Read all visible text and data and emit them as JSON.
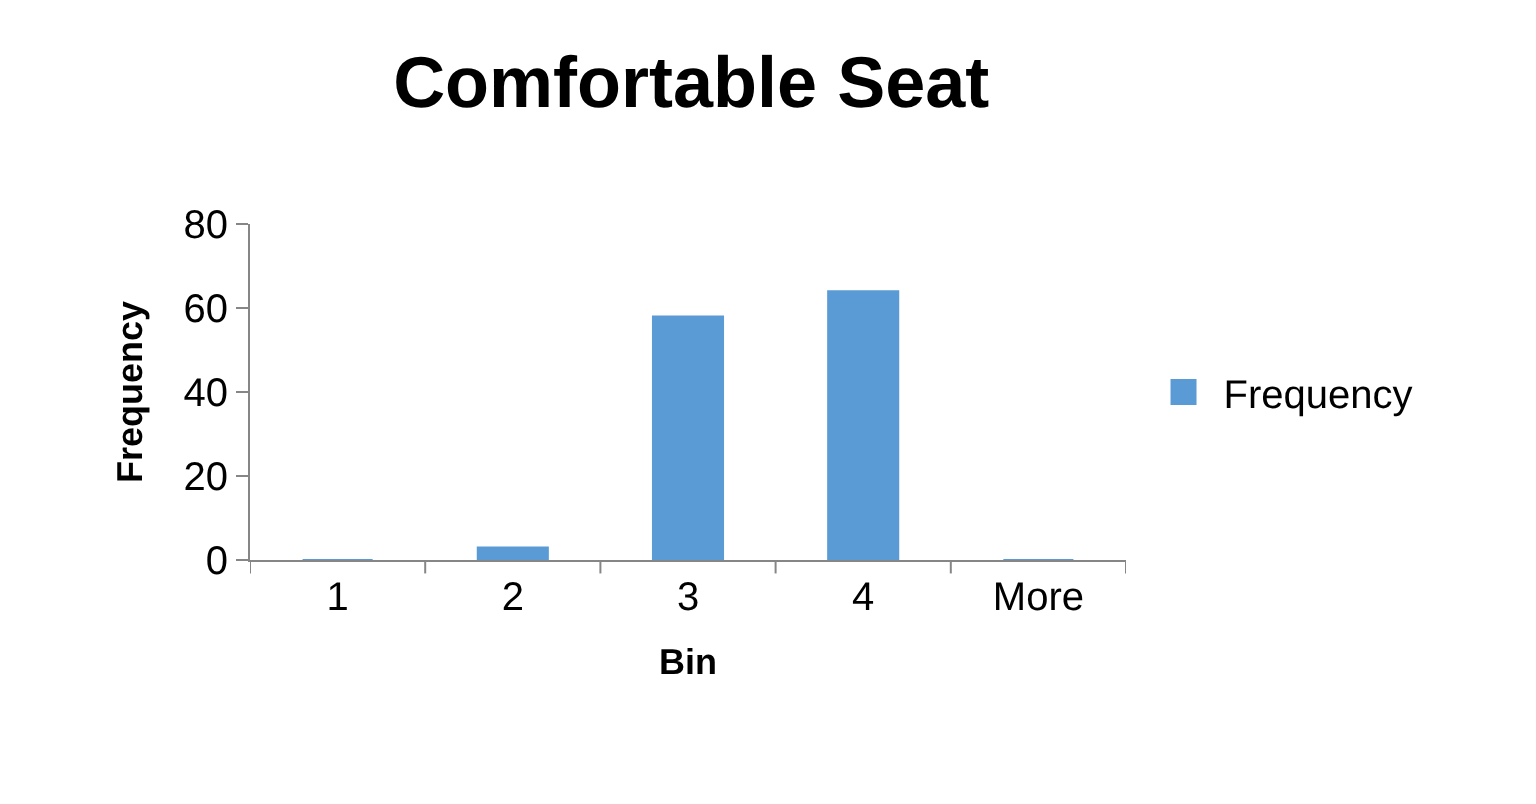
{
  "chart_data": {
    "type": "bar",
    "title": "Comfortable Seat",
    "xlabel": "Bin",
    "ylabel": "Frequency",
    "categories": [
      "1",
      "2",
      "3",
      "4",
      "More"
    ],
    "series": [
      {
        "name": "Frequency",
        "color": "#5b9bd5",
        "values": [
          0,
          3,
          58,
          64,
          0
        ]
      }
    ],
    "ylim": [
      0,
      80
    ],
    "yticks": [
      0,
      20,
      40,
      60,
      80
    ],
    "legend": "right"
  }
}
